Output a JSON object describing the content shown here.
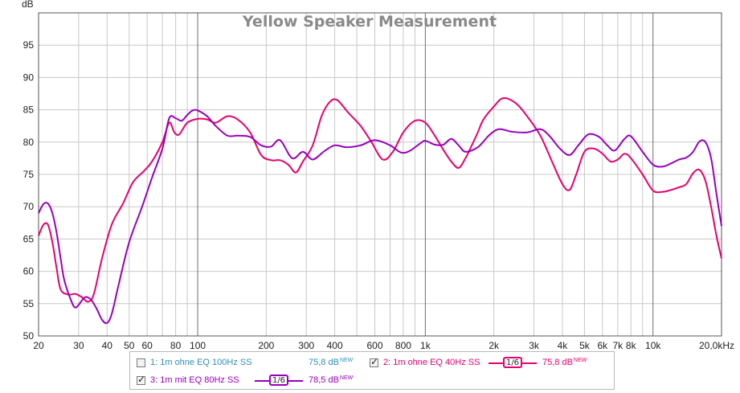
{
  "chart_data": {
    "type": "line",
    "title": "Yellow Speaker Measurement",
    "ylabel": "dB",
    "xscale": "log",
    "xlim": [
      20,
      20000
    ],
    "ylim": [
      50,
      100
    ],
    "grid": true,
    "legend_position": "bottom",
    "yticks": [
      50,
      55,
      60,
      65,
      70,
      75,
      80,
      85,
      90,
      95
    ],
    "xticks": [
      {
        "value": 20,
        "label": "20"
      },
      {
        "value": 30,
        "label": "30"
      },
      {
        "value": 40,
        "label": "40"
      },
      {
        "value": 50,
        "label": "50"
      },
      {
        "value": 60,
        "label": "60"
      },
      {
        "value": 80,
        "label": "80"
      },
      {
        "value": 100,
        "label": "100"
      },
      {
        "value": 200,
        "label": "200"
      },
      {
        "value": 300,
        "label": "300"
      },
      {
        "value": 400,
        "label": "400"
      },
      {
        "value": 600,
        "label": "600"
      },
      {
        "value": 800,
        "label": "800"
      },
      {
        "value": 1000,
        "label": "1k"
      },
      {
        "value": 2000,
        "label": "2k"
      },
      {
        "value": 3000,
        "label": "3k"
      },
      {
        "value": 4000,
        "label": "4k"
      },
      {
        "value": 5000,
        "label": "5k"
      },
      {
        "value": 6000,
        "label": "6k"
      },
      {
        "value": 7000,
        "label": "7k"
      },
      {
        "value": 8000,
        "label": "8k"
      },
      {
        "value": 10000,
        "label": "10k"
      },
      {
        "value": 20000,
        "label": "20,0kHz"
      }
    ],
    "series": [
      {
        "name": "2: 1m ohne EQ 40Hz SS",
        "color": "#e8006e",
        "visible": true,
        "points": [
          [
            20,
            65.5
          ],
          [
            21,
            67.2
          ],
          [
            22,
            67.2
          ],
          [
            23,
            64.5
          ],
          [
            24,
            60.5
          ],
          [
            25,
            57.2
          ],
          [
            27,
            56.4
          ],
          [
            29,
            56.5
          ],
          [
            31,
            56
          ],
          [
            33,
            55.3
          ],
          [
            35,
            56.5
          ],
          [
            38,
            62
          ],
          [
            42,
            67.3
          ],
          [
            47,
            70.5
          ],
          [
            52,
            73.8
          ],
          [
            58,
            75.5
          ],
          [
            63,
            77
          ],
          [
            70,
            80
          ],
          [
            75,
            83
          ],
          [
            79,
            81.5
          ],
          [
            83,
            81.2
          ],
          [
            90,
            83
          ],
          [
            100,
            83.6
          ],
          [
            110,
            83.5
          ],
          [
            120,
            83
          ],
          [
            135,
            84
          ],
          [
            150,
            83.5
          ],
          [
            170,
            81.5
          ],
          [
            190,
            78
          ],
          [
            210,
            77.2
          ],
          [
            230,
            77.2
          ],
          [
            250,
            76.5
          ],
          [
            270,
            75.3
          ],
          [
            290,
            77
          ],
          [
            320,
            79.5
          ],
          [
            350,
            84
          ],
          [
            380,
            86.2
          ],
          [
            410,
            86.5
          ],
          [
            460,
            84.5
          ],
          [
            520,
            82.5
          ],
          [
            580,
            80
          ],
          [
            650,
            77.3
          ],
          [
            720,
            78.5
          ],
          [
            800,
            81.5
          ],
          [
            900,
            83.3
          ],
          [
            1000,
            83
          ],
          [
            1100,
            81
          ],
          [
            1200,
            78.8
          ],
          [
            1300,
            77
          ],
          [
            1400,
            76
          ],
          [
            1500,
            77.5
          ],
          [
            1600,
            79.5
          ],
          [
            1700,
            81.5
          ],
          [
            1800,
            83.5
          ],
          [
            2000,
            85.5
          ],
          [
            2200,
            86.8
          ],
          [
            2500,
            86
          ],
          [
            2800,
            84
          ],
          [
            3200,
            81
          ],
          [
            3600,
            77
          ],
          [
            4000,
            73.5
          ],
          [
            4300,
            72.6
          ],
          [
            4600,
            75
          ],
          [
            5000,
            78.5
          ],
          [
            5500,
            79
          ],
          [
            6000,
            78.2
          ],
          [
            6500,
            77
          ],
          [
            7000,
            77.3
          ],
          [
            7500,
            78.2
          ],
          [
            8000,
            77.5
          ],
          [
            9000,
            75
          ],
          [
            10000,
            72.5
          ],
          [
            11000,
            72.3
          ],
          [
            12000,
            72.6
          ],
          [
            13000,
            73
          ],
          [
            14000,
            73.5
          ],
          [
            15000,
            75.2
          ],
          [
            16000,
            75.7
          ],
          [
            17000,
            74
          ],
          [
            18000,
            70
          ],
          [
            19000,
            65.5
          ],
          [
            20000,
            62
          ]
        ]
      },
      {
        "name": "3: 1m mit EQ 80Hz SS",
        "color": "#9900bb",
        "visible": true,
        "points": [
          [
            20,
            69
          ],
          [
            21,
            70.4
          ],
          [
            22,
            70.5
          ],
          [
            23,
            69
          ],
          [
            24,
            66
          ],
          [
            25,
            62
          ],
          [
            26,
            58.5
          ],
          [
            28,
            55.2
          ],
          [
            29,
            54.4
          ],
          [
            30,
            54.8
          ],
          [
            32,
            56
          ],
          [
            34,
            55.6
          ],
          [
            36,
            54.2
          ],
          [
            38,
            52.5
          ],
          [
            40,
            52
          ],
          [
            42,
            53.5
          ],
          [
            45,
            58
          ],
          [
            50,
            64.5
          ],
          [
            57,
            70
          ],
          [
            63,
            74.5
          ],
          [
            70,
            79
          ],
          [
            75,
            83.7
          ],
          [
            80,
            83.7
          ],
          [
            85,
            83.3
          ],
          [
            90,
            84.2
          ],
          [
            95,
            84.9
          ],
          [
            100,
            84.9
          ],
          [
            110,
            84
          ],
          [
            120,
            82.5
          ],
          [
            135,
            81
          ],
          [
            150,
            81
          ],
          [
            170,
            80.8
          ],
          [
            190,
            79.5
          ],
          [
            210,
            79.3
          ],
          [
            230,
            80.3
          ],
          [
            260,
            77.5
          ],
          [
            290,
            78.5
          ],
          [
            320,
            77.3
          ],
          [
            360,
            78.6
          ],
          [
            400,
            79.5
          ],
          [
            450,
            79.2
          ],
          [
            520,
            79.5
          ],
          [
            600,
            80.3
          ],
          [
            700,
            79.5
          ],
          [
            780,
            78.4
          ],
          [
            850,
            78.6
          ],
          [
            950,
            79.8
          ],
          [
            1000,
            80.2
          ],
          [
            1100,
            79.6
          ],
          [
            1200,
            79.6
          ],
          [
            1300,
            80.5
          ],
          [
            1400,
            79.5
          ],
          [
            1500,
            78.5
          ],
          [
            1700,
            79.2
          ],
          [
            1900,
            81
          ],
          [
            2100,
            82
          ],
          [
            2400,
            81.6
          ],
          [
            2800,
            81.5
          ],
          [
            3200,
            82
          ],
          [
            3500,
            81
          ],
          [
            3900,
            79
          ],
          [
            4300,
            78
          ],
          [
            4700,
            79.5
          ],
          [
            5200,
            81.2
          ],
          [
            5800,
            80.8
          ],
          [
            6300,
            79.5
          ],
          [
            6800,
            78.7
          ],
          [
            7500,
            80.5
          ],
          [
            8000,
            80.9
          ],
          [
            9000,
            78.5
          ],
          [
            10000,
            76.5
          ],
          [
            11000,
            76.2
          ],
          [
            12000,
            76.7
          ],
          [
            13000,
            77.3
          ],
          [
            14000,
            77.6
          ],
          [
            15000,
            78.5
          ],
          [
            16000,
            80.1
          ],
          [
            17000,
            80
          ],
          [
            18000,
            77.5
          ],
          [
            19000,
            72
          ],
          [
            20000,
            67
          ]
        ]
      }
    ]
  },
  "legend": {
    "items": [
      {
        "label": "1: 1m ohne EQ 100Hz SS",
        "level": "75,8 dB",
        "level_sup": "NEW",
        "checked": false,
        "color": "#2f8fb8",
        "level_color": "#2f8fb8"
      },
      {
        "label": "2: 1m ohne EQ 40Hz SS",
        "level": "75,8 dB",
        "level_sup": "NEW",
        "checked": true,
        "color": "#e8006e",
        "level_color": "#e8006e",
        "smoothing": "1/6"
      },
      {
        "label": "3: 1m mit EQ 80Hz SS",
        "level": "78,5 dB",
        "level_sup": "NEW",
        "checked": true,
        "color": "#9900bb",
        "level_color": "#9900bb",
        "smoothing": "1/6"
      }
    ]
  }
}
